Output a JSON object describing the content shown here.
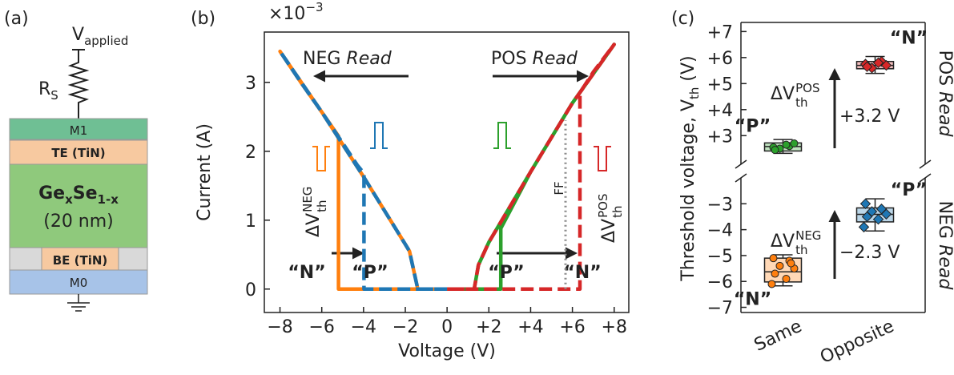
{
  "panel_a": {
    "label": "(a)",
    "source": {
      "base": "V",
      "sub": "applied"
    },
    "resistor": {
      "base": "R",
      "sub": "S"
    },
    "layers": {
      "top": "M1",
      "top_electrode": "TE (TiN)",
      "film": {
        "a": "Ge",
        "a_sub": "x",
        "b": "Se",
        "b_sub": "1-x"
      },
      "thickness": "(20 nm)",
      "bottom_electrode": "BE (TiN)",
      "bottom": "M0"
    }
  },
  "chart_data": [
    {
      "type": "line",
      "panel_label": "(b)",
      "x_label": "Voltage (V)",
      "y_label": "Current (A)",
      "y_multiplier": {
        "base": "×10",
        "exp": "−3"
      },
      "xlim": [
        -8.75,
        8.7
      ],
      "ylim": [
        -0.34,
        3.73
      ],
      "xticks": [
        {
          "value": -8,
          "label": "−8"
        },
        {
          "value": -6,
          "label": "−6"
        },
        {
          "value": -4,
          "label": "−4"
        },
        {
          "value": -2,
          "label": "−2"
        },
        0,
        {
          "value": 2,
          "label": "+2"
        },
        {
          "value": 4,
          "label": "+4"
        },
        {
          "value": 6,
          "label": "+6"
        },
        {
          "value": 8,
          "label": "+8"
        }
      ],
      "yticks": [
        0,
        1,
        2,
        3
      ],
      "series": [
        {
          "name": "“N”",
          "color": "#ff7f0e",
          "dashed": false,
          "x": [
            0,
            -5.2,
            -5.2,
            -6,
            -7,
            -8,
            -6,
            -4,
            -3,
            -2,
            -1.8,
            -1.4,
            0
          ],
          "values": [
            0,
            0,
            2.22,
            2.57,
            3.0,
            3.45,
            2.57,
            1.63,
            1.14,
            0.65,
            0.55,
            0,
            0
          ]
        },
        {
          "name": "“P”",
          "color": "#1f77b4",
          "dashed": true,
          "x": [
            0,
            -3.98,
            -3.98,
            -4.3,
            -5,
            -6,
            -7,
            -8,
            -6,
            -4,
            -3,
            -2,
            -1.8,
            -1.4,
            0
          ],
          "values": [
            0,
            0,
            1.68,
            1.8,
            2.12,
            2.57,
            3.0,
            3.45,
            2.57,
            1.63,
            1.14,
            0.65,
            0.55,
            0,
            0
          ]
        },
        {
          "name": "“P”",
          "color": "#2ca02c",
          "dashed": false,
          "x": [
            0,
            2.57,
            2.57,
            4,
            6,
            8,
            6,
            4,
            2,
            1.5,
            1.3,
            0
          ],
          "values": [
            0,
            0,
            0.88,
            1.7,
            2.7,
            3.55,
            2.7,
            1.7,
            0.68,
            0.35,
            0,
            0
          ]
        },
        {
          "name": "“N”",
          "color": "#d62728",
          "dashed": true,
          "x": [
            0,
            6.36,
            6.36,
            7,
            8,
            6,
            4,
            2,
            1.5,
            1.3,
            0
          ],
          "values": [
            0,
            0,
            2.85,
            3.15,
            3.55,
            2.7,
            1.7,
            0.68,
            0.35,
            0,
            0
          ]
        },
        {
          "name": "FF",
          "color": "#8c8c8c",
          "dotted": true,
          "x": [
            5.67,
            5.67
          ],
          "values": [
            0,
            2.45
          ]
        }
      ],
      "annotations": {
        "neg_read": {
          "text": "NEG",
          "emph": "Read"
        },
        "pos_read": {
          "text": "POS",
          "emph": "Read"
        },
        "dv_neg": {
          "base": "ΔV",
          "sub": "th",
          "sup": "NEG"
        },
        "dv_pos": {
          "base": "ΔV",
          "sub": "th",
          "sup": "POS"
        }
      }
    },
    {
      "type": "box",
      "panel_label": "(c)",
      "y_label": {
        "text": "Threshold voltage, V",
        "sub": "th",
        "unit": "(V)"
      },
      "categories": [
        "Same",
        "Opposite"
      ],
      "panels": [
        {
          "title": {
            "text": "POS",
            "emph": "Read"
          },
          "ylim": [
            1.9,
            7.35
          ],
          "yticks": [
            {
              "value": 3,
              "label": "+3"
            },
            {
              "value": 4,
              "label": "+4"
            },
            {
              "value": 5,
              "label": "+5"
            },
            {
              "value": 6,
              "label": "+6"
            },
            {
              "value": 7,
              "label": "+7"
            }
          ],
          "boxes": [
            {
              "label": "“P”",
              "color": "#2ca02c",
              "marker": "circle",
              "whisker_low": 2.32,
              "q1": 2.41,
              "median": 2.58,
              "q3": 2.72,
              "whisker_high": 2.85,
              "points": [
                2.55,
                2.6,
                2.5,
                2.7,
                2.45,
                2.65
              ]
            },
            {
              "label": "“N”",
              "color": "#d62728",
              "marker": "diamond",
              "whisker_low": 5.39,
              "q1": 5.57,
              "median": 5.7,
              "q3": 5.85,
              "whisker_high": 6.04,
              "points": [
                5.75,
                5.85,
                5.6,
                5.7,
                5.65,
                5.8
              ]
            }
          ],
          "delta": {
            "base": "ΔV",
            "sub": "th",
            "sup": "POS"
          },
          "shift": "+3.2 V"
        },
        {
          "title": {
            "text": "NEG",
            "emph": "Read"
          },
          "ylim": [
            -7.2,
            -2.0
          ],
          "yticks": [
            {
              "value": -7,
              "label": "−7"
            },
            {
              "value": -6,
              "label": "−6"
            },
            {
              "value": -5,
              "label": "−5"
            },
            {
              "value": -4,
              "label": "−4"
            },
            {
              "value": -3,
              "label": "−3"
            }
          ],
          "boxes": [
            {
              "label": "“N”",
              "color": "#ff7f0e",
              "marker": "circle",
              "whisker_low": -6.17,
              "q1": -6.02,
              "median": -5.63,
              "q3": -5.1,
              "whisker_high": -4.97,
              "points": [
                -5.1,
                -5.2,
                -5.4,
                -5.5,
                -5.7,
                -5.9,
                -6.1,
                -5.3
              ]
            },
            {
              "label": "“P”",
              "color": "#1f77b4",
              "marker": "diamond",
              "whisker_low": -4.05,
              "q1": -3.7,
              "median": -3.41,
              "q3": -3.16,
              "whisker_high": -2.81,
              "points": [
                -3.0,
                -3.2,
                -3.3,
                -3.4,
                -3.5,
                -3.6,
                -3.9
              ]
            }
          ],
          "delta": {
            "base": "ΔV",
            "sub": "th",
            "sup": "NEG"
          },
          "shift": "−2.3 V"
        }
      ]
    }
  ]
}
